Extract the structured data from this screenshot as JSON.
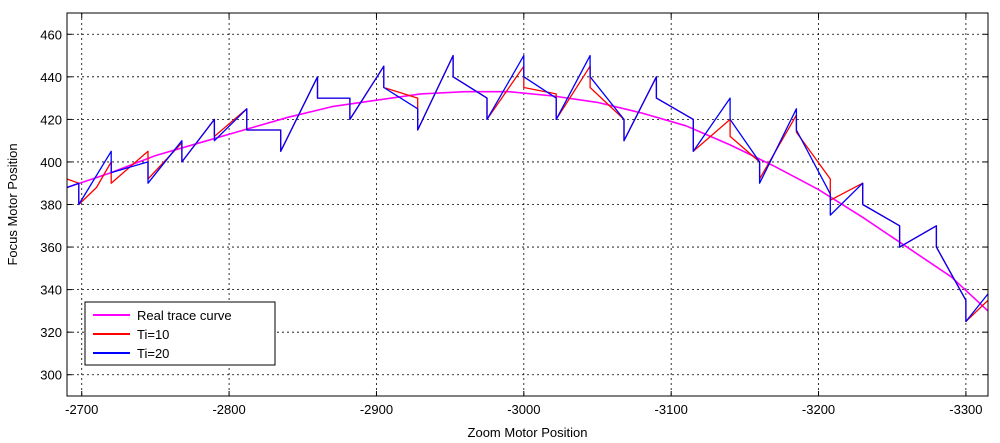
{
  "chart_data": {
    "type": "line",
    "title": "",
    "xlabel": "Zoom Motor Position",
    "ylabel": "Focus Motor Position",
    "xlim": [
      -2690,
      -3315
    ],
    "ylim": [
      290,
      470
    ],
    "x_reversed": true,
    "xticks": [
      -2700,
      -2800,
      -2900,
      -3000,
      -3100,
      -3200,
      -3300
    ],
    "yticks": [
      300,
      320,
      340,
      360,
      380,
      400,
      420,
      440,
      460
    ],
    "grid": true,
    "legend_position": "bottom-left",
    "series": [
      {
        "name": "Real trace curve",
        "color": "#ff00ff",
        "x": [
          -2690,
          -2720,
          -2750,
          -2780,
          -2810,
          -2840,
          -2870,
          -2900,
          -2930,
          -2960,
          -2990,
          -3020,
          -3050,
          -3080,
          -3110,
          -3140,
          -3170,
          -3200,
          -3230,
          -3260,
          -3290,
          -3315
        ],
        "y": [
          388,
          395,
          403,
          409,
          415,
          421,
          426,
          429,
          432,
          433,
          433,
          431,
          428,
          423,
          417,
          408,
          398,
          387,
          374,
          360,
          346,
          330
        ]
      },
      {
        "name": "Ti=10",
        "color": "#ff0000",
        "x": [
          -2690,
          -2698,
          -2698,
          -2710,
          -2720,
          -2720,
          -2745,
          -2745,
          -2768,
          -2768,
          -2790,
          -2790,
          -2812,
          -2812,
          -2835,
          -2835,
          -2860,
          -2860,
          -2882,
          -2882,
          -2905,
          -2905,
          -2928,
          -2928,
          -2952,
          -2952,
          -2975,
          -2975,
          -3000,
          -3000,
          -3022,
          -3022,
          -3045,
          -3045,
          -3068,
          -3068,
          -3090,
          -3090,
          -3115,
          -3115,
          -3140,
          -3140,
          -3160,
          -3160,
          -3185,
          -3185,
          -3208,
          -3208,
          -3230,
          -3230,
          -3255,
          -3255,
          -3280,
          -3280,
          -3300,
          -3300,
          -3315
        ],
        "y": [
          392,
          390,
          380,
          388,
          400,
          390,
          405,
          392,
          409,
          400,
          420,
          412,
          425,
          415,
          415,
          405,
          440,
          430,
          430,
          420,
          445,
          435,
          430,
          415,
          450,
          440,
          430,
          420,
          445,
          435,
          432,
          420,
          445,
          435,
          420,
          410,
          440,
          430,
          420,
          405,
          420,
          412,
          400,
          392,
          422,
          414,
          392,
          382,
          390,
          380,
          370,
          360,
          370,
          360,
          335,
          325,
          335
        ]
      },
      {
        "name": "Ti=20",
        "color": "#0000ff",
        "x": [
          -2690,
          -2698,
          -2698,
          -2720,
          -2720,
          -2745,
          -2745,
          -2768,
          -2768,
          -2790,
          -2790,
          -2812,
          -2812,
          -2835,
          -2835,
          -2860,
          -2860,
          -2882,
          -2882,
          -2905,
          -2905,
          -2928,
          -2928,
          -2952,
          -2952,
          -2975,
          -2975,
          -3000,
          -3000,
          -3022,
          -3022,
          -3045,
          -3045,
          -3068,
          -3068,
          -3090,
          -3090,
          -3115,
          -3115,
          -3140,
          -3140,
          -3160,
          -3160,
          -3185,
          -3185,
          -3208,
          -3208,
          -3230,
          -3230,
          -3255,
          -3255,
          -3280,
          -3280,
          -3300,
          -3300,
          -3315
        ],
        "y": [
          388,
          390,
          380,
          405,
          395,
          400,
          390,
          410,
          400,
          420,
          410,
          425,
          415,
          415,
          405,
          440,
          430,
          430,
          420,
          445,
          435,
          425,
          415,
          450,
          440,
          430,
          420,
          450,
          440,
          430,
          420,
          450,
          440,
          420,
          410,
          440,
          430,
          420,
          405,
          430,
          420,
          400,
          390,
          425,
          415,
          385,
          375,
          390,
          380,
          370,
          360,
          370,
          360,
          335,
          325,
          338
        ]
      }
    ]
  }
}
